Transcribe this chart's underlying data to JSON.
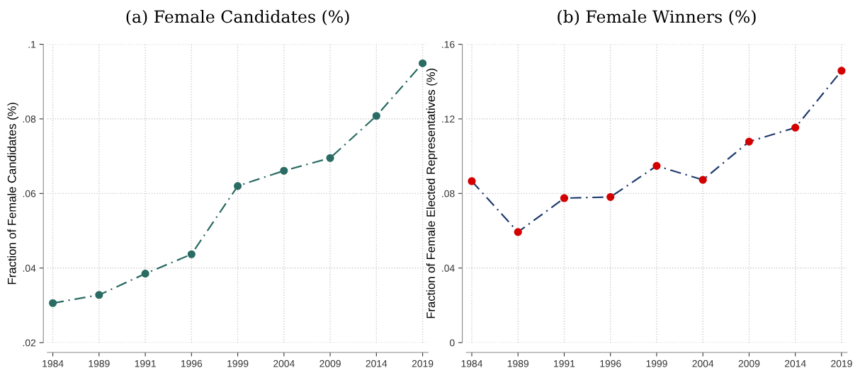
{
  "chart_data": [
    {
      "type": "line",
      "title": "(a) Female Candidates (%)",
      "ylabel": "Fraction of Female Candidates (%)",
      "categories": [
        "1984",
        "1989",
        "1991",
        "1996",
        "1999",
        "2004",
        "2009",
        "2014",
        "2019"
      ],
      "series": [
        {
          "color": "#2a6b63",
          "values": [
            0.0306,
            0.0328,
            0.0385,
            0.0437,
            0.062,
            0.0661,
            0.0695,
            0.0808,
            0.0949
          ],
          "marker": "circle",
          "line_style": "dashed"
        }
      ],
      "ylim": [
        0.02,
        0.1
      ],
      "yticks": [
        {
          "value": 0.02,
          "label": ".02"
        },
        {
          "value": 0.04,
          "label": ".04"
        },
        {
          "value": 0.06,
          "label": ".06"
        },
        {
          "value": 0.08,
          "label": ".08"
        },
        {
          "value": 0.1,
          "label": ".1"
        }
      ],
      "grid": true,
      "legend": false
    },
    {
      "type": "line",
      "title": "(b) Female Winners (%)",
      "ylabel": "Fraction of Female Elected Representatives (%)",
      "categories": [
        "1984",
        "1989",
        "1991",
        "1996",
        "1999",
        "2004",
        "2009",
        "2014",
        "2019"
      ],
      "series": [
        {
          "color": "#1f3a6e",
          "values": [
            0.0866,
            0.0593,
            0.0775,
            0.0781,
            0.0948,
            0.0873,
            0.1078,
            0.1153,
            0.1458
          ],
          "marker": "none",
          "line_style": "dashed"
        },
        {
          "type": "scatter",
          "color": "#d40000",
          "values": [
            0.0866,
            0.0593,
            0.0775,
            0.0781,
            0.0948,
            0.0873,
            0.1078,
            0.1153,
            0.1458
          ],
          "marker": "circle"
        }
      ],
      "ylim": [
        0,
        0.16
      ],
      "yticks": [
        0,
        {
          "value": 0.04,
          "label": ".04"
        },
        {
          "value": 0.08,
          "label": ".08"
        },
        {
          "value": 0.12,
          "label": ".12"
        },
        {
          "value": 0.16,
          "label": ".16"
        }
      ],
      "grid": true,
      "legend": false
    }
  ]
}
